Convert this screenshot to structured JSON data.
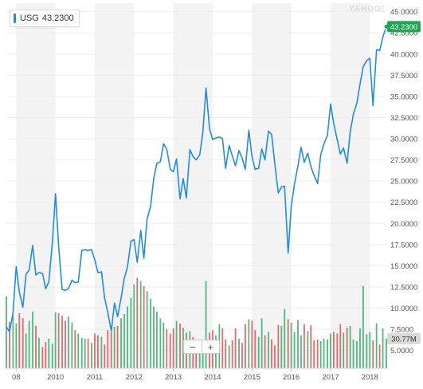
{
  "legend": {
    "symbol": "USG",
    "price": "43.2300"
  },
  "watermark": "YAHOO!",
  "controls": {
    "zoom_out": "−",
    "zoom_in": "+"
  },
  "colors": {
    "line": "#1f8ceb",
    "up_volume": "#3cb371",
    "down_volume": "#e05b5b",
    "band": "#f3f3f3",
    "price_tag": "#1fa653",
    "volume_tag": "#d9d9d9"
  },
  "chart_data": {
    "type": "line",
    "title": "",
    "xlabel": "",
    "ylabel": "",
    "x_tick_labels": [
      "08",
      "2010",
      "2011",
      "2012",
      "2013",
      "2014",
      "2015",
      "2016",
      "2017",
      "2018"
    ],
    "y_tick_labels": [
      "5.0000",
      "7.5000",
      "10.0000",
      "12.5000",
      "15.0000",
      "17.5000",
      "20.0000",
      "22.5000",
      "25.0000",
      "27.5000",
      "30.0000",
      "32.5000",
      "35.0000",
      "37.5000",
      "40.0000",
      "42.5000",
      "45.0000"
    ],
    "y_ticks": [
      5,
      7.5,
      10,
      12.5,
      15,
      17.5,
      20,
      22.5,
      25,
      27.5,
      30,
      32.5,
      35,
      37.5,
      40,
      42.5,
      45
    ],
    "ylim": [
      2.9,
      46.0
    ],
    "xlim": [
      2008.75,
      2018.42
    ],
    "last_price_label": "43.2300",
    "volume_label": "30.77M",
    "series": [
      {
        "name": "USG",
        "x": [
          2008.75,
          2008.83,
          2008.92,
          2009.0,
          2009.08,
          2009.17,
          2009.25,
          2009.33,
          2009.42,
          2009.5,
          2009.58,
          2009.67,
          2009.75,
          2009.83,
          2009.92,
          2010.0,
          2010.08,
          2010.17,
          2010.25,
          2010.33,
          2010.42,
          2010.5,
          2010.58,
          2010.67,
          2010.75,
          2010.83,
          2010.92,
          2011.0,
          2011.08,
          2011.17,
          2011.25,
          2011.33,
          2011.42,
          2011.5,
          2011.58,
          2011.67,
          2011.75,
          2011.83,
          2011.92,
          2012.0,
          2012.08,
          2012.17,
          2012.25,
          2012.33,
          2012.42,
          2012.5,
          2012.58,
          2012.67,
          2012.75,
          2012.83,
          2012.92,
          2013.0,
          2013.08,
          2013.17,
          2013.25,
          2013.33,
          2013.42,
          2013.5,
          2013.58,
          2013.67,
          2013.75,
          2013.83,
          2013.92,
          2014.0,
          2014.08,
          2014.17,
          2014.25,
          2014.33,
          2014.42,
          2014.5,
          2014.58,
          2014.67,
          2014.75,
          2014.83,
          2014.92,
          2015.0,
          2015.08,
          2015.17,
          2015.25,
          2015.33,
          2015.42,
          2015.5,
          2015.58,
          2015.67,
          2015.75,
          2015.83,
          2015.92,
          2016.0,
          2016.08,
          2016.17,
          2016.25,
          2016.33,
          2016.42,
          2016.5,
          2016.58,
          2016.67,
          2016.75,
          2016.83,
          2016.92,
          2017.0,
          2017.08,
          2017.17,
          2017.25,
          2017.33,
          2017.42,
          2017.5,
          2017.58,
          2017.67,
          2017.75,
          2017.83,
          2017.92,
          2018.0,
          2018.08,
          2018.17,
          2018.25,
          2018.33,
          2018.42
        ],
        "values": [
          7.8,
          7.2,
          9.5,
          14.9,
          11.9,
          10.1,
          14.0,
          14.5,
          17.4,
          13.9,
          14.2,
          14.1,
          12.3,
          13.1,
          17.7,
          23.5,
          17.3,
          12.2,
          12.1,
          12.3,
          13.3,
          13.0,
          13.1,
          16.8,
          16.9,
          16.8,
          16.9,
          15.7,
          14.2,
          14.3,
          11.2,
          9.5,
          7.3,
          10.6,
          9.0,
          11.2,
          13.5,
          14.8,
          17.9,
          18.1,
          15.4,
          19.2,
          15.9,
          20.5,
          22.0,
          25.3,
          27.1,
          27.3,
          29.4,
          28.8,
          26.4,
          26.1,
          27.6,
          22.9,
          25.3,
          23.0,
          28.7,
          27.9,
          27.5,
          28.1,
          30.7,
          36.0,
          31.2,
          29.9,
          30.1,
          30.2,
          30.0,
          26.5,
          29.2,
          28.0,
          26.8,
          28.6,
          27.7,
          26.4,
          31.0,
          27.9,
          26.4,
          26.5,
          28.8,
          27.5,
          30.9,
          30.5,
          27.1,
          23.6,
          24.3,
          24.4,
          16.5,
          22.0,
          24.6,
          26.8,
          29.0,
          27.2,
          28.3,
          26.7,
          25.7,
          24.7,
          28.1,
          29.4,
          30.4,
          34.1,
          31.8,
          29.9,
          28.2,
          28.9,
          27.1,
          30.8,
          32.9,
          34.2,
          36.5,
          38.5,
          39.2,
          39.5,
          33.9,
          40.5,
          40.4,
          42.0,
          43.23
        ]
      },
      {
        "name": "Volume",
        "type": "bar",
        "values": [
          11.4,
          8.4,
          9.2,
          8.2,
          9.4,
          8.8,
          7.0,
          8.5,
          9.6,
          7.9,
          6.5,
          5.4,
          6.0,
          6.4,
          5.8,
          9.5,
          9.4,
          9.1,
          8.5,
          9.0,
          8.3,
          7.4,
          7.0,
          6.5,
          6.4,
          6.4,
          5.9,
          7.0,
          6.8,
          6.6,
          5.7,
          7.4,
          7.2,
          7.8,
          7.9,
          8.8,
          9.3,
          10.2,
          11.2,
          12.8,
          13.6,
          13.2,
          12.6,
          12.0,
          11.1,
          10.2,
          9.6,
          8.8,
          8.3,
          7.5,
          7.0,
          7.6,
          8.5,
          8.2,
          7.7,
          7.1,
          7.3,
          6.6,
          6.2,
          6.0,
          5.5,
          13.2,
          7.1,
          7.4,
          6.8,
          8.1,
          7.6,
          6.3,
          5.6,
          6.2,
          7.6,
          6.4,
          5.9,
          8.1,
          8.7,
          8.5,
          7.4,
          6.6,
          8.8,
          6.8,
          7.2,
          6.3,
          5.6,
          8.0,
          7.9,
          9.9,
          8.7,
          8.3,
          7.2,
          8.6,
          6.8,
          8.1,
          7.3,
          8.0,
          6.2,
          6.3,
          6.1,
          6.4,
          6.3,
          7.0,
          7.2,
          7.0,
          8.1,
          7.1,
          7.7,
          7.9,
          6.3,
          6.1,
          7.6,
          12.6,
          6.9,
          7.2,
          6.2,
          8.2,
          5.7,
          7.6,
          6.4
        ]
      }
    ]
  }
}
